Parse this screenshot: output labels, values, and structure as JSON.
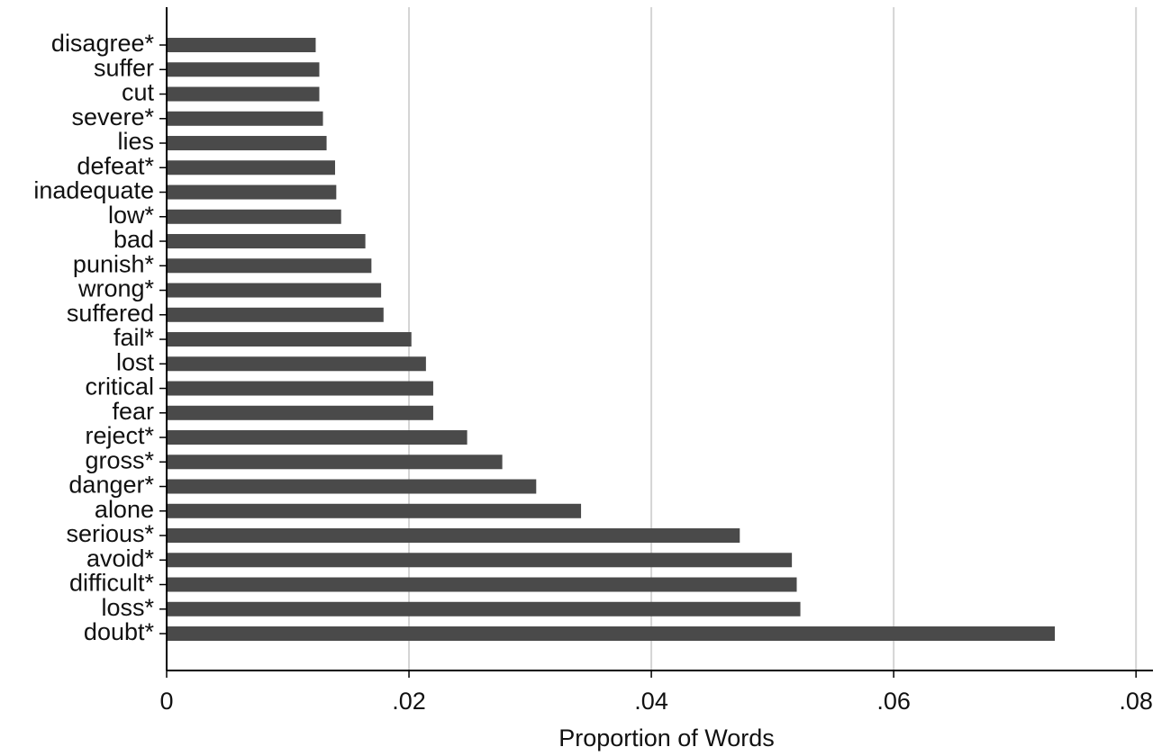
{
  "chart_data": {
    "type": "barh",
    "x_label": "Proportion of Words",
    "categories": [
      "disagree*",
      "suffer",
      "cut",
      "severe*",
      "lies",
      "defeat*",
      "inadequate",
      "low*",
      "bad",
      "punish*",
      "wrong*",
      "suffered",
      "fail*",
      "lost",
      "critical",
      "fear",
      "reject*",
      "gross*",
      "danger*",
      "alone",
      "serious*",
      "avoid*",
      "difficult*",
      "loss*",
      "doubt*"
    ],
    "values": [
      0.0123,
      0.0126,
      0.0126,
      0.0129,
      0.0132,
      0.0139,
      0.014,
      0.0144,
      0.0164,
      0.0169,
      0.0177,
      0.0179,
      0.0202,
      0.0214,
      0.022,
      0.022,
      0.0248,
      0.0277,
      0.0305,
      0.0342,
      0.0473,
      0.0516,
      0.052,
      0.0523,
      0.0733
    ],
    "color": "#4a4a4a",
    "xlim": [
      0,
      0.0814
    ],
    "xticks": [
      0,
      {
        "value": 0.02,
        "label": ".02"
      },
      {
        "value": 0.04,
        "label": ".04"
      },
      {
        "value": 0.06,
        "label": ".06"
      },
      {
        "value": 0.08,
        "label": ".08"
      }
    ],
    "grid": true
  }
}
